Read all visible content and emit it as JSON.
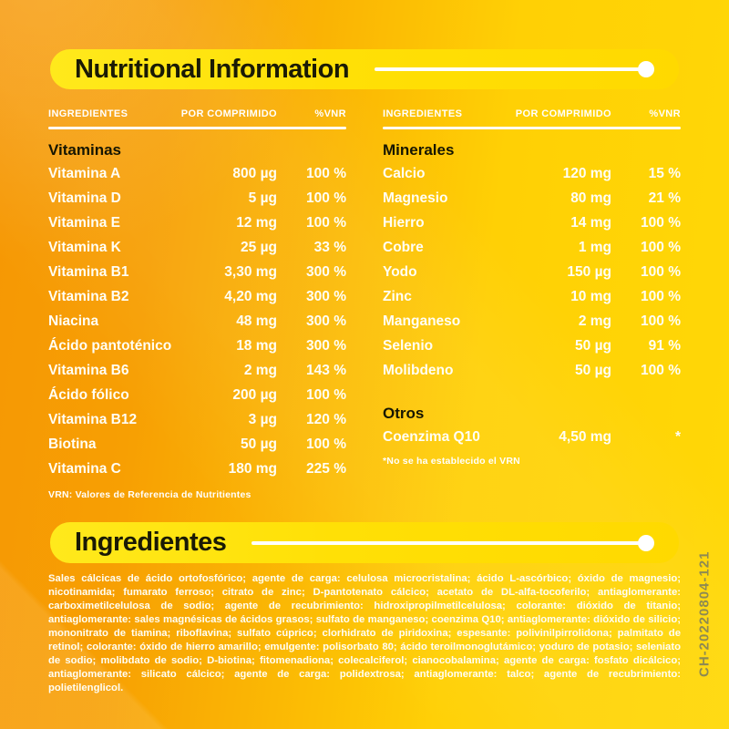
{
  "header": {
    "title": "Nutritional Information"
  },
  "tables": {
    "columns": {
      "ingredientes": "INGREDIENTES",
      "por_comprimido": "POR COMPRIMIDO",
      "vnr": "%VNR"
    },
    "left": {
      "section": "Vitaminas",
      "rows": [
        {
          "name": "Vitamina A",
          "amount": "800 µg",
          "vnr": "100 %"
        },
        {
          "name": "Vitamina D",
          "amount": "5 µg",
          "vnr": "100 %"
        },
        {
          "name": "Vitamina E",
          "amount": "12 mg",
          "vnr": "100 %"
        },
        {
          "name": "Vitamina K",
          "amount": "25 µg",
          "vnr": "33 %"
        },
        {
          "name": "Vitamina B1",
          "amount": "3,30 mg",
          "vnr": "300 %"
        },
        {
          "name": "Vitamina B2",
          "amount": "4,20 mg",
          "vnr": "300 %"
        },
        {
          "name": "Niacina",
          "amount": "48 mg",
          "vnr": "300 %"
        },
        {
          "name": "Ácido pantoténico",
          "amount": "18 mg",
          "vnr": "300 %"
        },
        {
          "name": "Vitamina B6",
          "amount": "2 mg",
          "vnr": "143 %"
        },
        {
          "name": "Ácido fólico",
          "amount": "200 µg",
          "vnr": "100 %"
        },
        {
          "name": "Vitamina B12",
          "amount": "3 µg",
          "vnr": "120 %"
        },
        {
          "name": "Biotina",
          "amount": "50 µg",
          "vnr": "100 %"
        },
        {
          "name": "Vitamina C",
          "amount": "180 mg",
          "vnr": "225 %"
        }
      ],
      "footnote": "VRN: Valores de Referencia de Nutritientes"
    },
    "right": {
      "section": "Minerales",
      "rows": [
        {
          "name": "Calcio",
          "amount": "120 mg",
          "vnr": "15 %"
        },
        {
          "name": "Magnesio",
          "amount": "80 mg",
          "vnr": "21 %"
        },
        {
          "name": "Hierro",
          "amount": "14 mg",
          "vnr": "100 %"
        },
        {
          "name": "Cobre",
          "amount": "1 mg",
          "vnr": "100 %"
        },
        {
          "name": "Yodo",
          "amount": "150 µg",
          "vnr": "100 %"
        },
        {
          "name": "Zinc",
          "amount": "10 mg",
          "vnr": "100 %"
        },
        {
          "name": "Manganeso",
          "amount": "2 mg",
          "vnr": "100 %"
        },
        {
          "name": "Selenio",
          "amount": "50 µg",
          "vnr": "91 %"
        },
        {
          "name": "Molibdeno",
          "amount": "50 µg",
          "vnr": "100 %"
        }
      ],
      "otros_section": "Otros",
      "otros_rows": [
        {
          "name": "Coenzima Q10",
          "amount": "4,50 mg",
          "vnr": "*"
        }
      ],
      "footnote": "*No se ha establecido el VRN"
    }
  },
  "ingredients": {
    "title": "Ingredientes",
    "text": "Sales cálcicas de ácido ortofosfórico; agente de carga: celulosa microcristalina; ácido L-ascórbico; óxido de magnesio; nicotinamida; fumarato ferroso; citrato de zinc; D-pantotenato cálcico; acetato de DL-alfa-tocoferilo; antiaglomerante: carboximetilcelulosa de sodio; agente de recubrimiento: hidroxipropilmetilcelulosa; colorante: dióxido de titanio; antiaglomerante: sales magnésicas de ácidos grasos; sulfato de manganeso; coenzima Q10; antiaglomerante: dióxido de silicio; mononitrato de tiamina; riboflavina; sulfato cúprico; clorhidrato de piridoxina; espesante: polivinilpirrolidona; palmitato de retinol; colorante: óxido de hierro amarillo; emulgente: polisorbato 80; ácido teroilmonoglutámico; yoduro de potasio; seleniato de sodio; molibdato de sodio; D-biotina; fitomenadiona; colecalciferol; cianocobalamina; agente de carga: fosfato dicálcico; antiaglomerante: silicato cálcico; agente de carga: polidextrosa; antiaglomerante: talco; agente de recubrimiento: polietilenglicol."
  },
  "batch_code": "CH-20220804-121",
  "colors": {
    "background_orange": "#f69704",
    "background_yellow": "#ffd806",
    "pill_yellow": "#ffe106",
    "heading_text": "#1a1a05",
    "body_text": "#fffef5",
    "batch_code_text": "#8e8a52"
  }
}
